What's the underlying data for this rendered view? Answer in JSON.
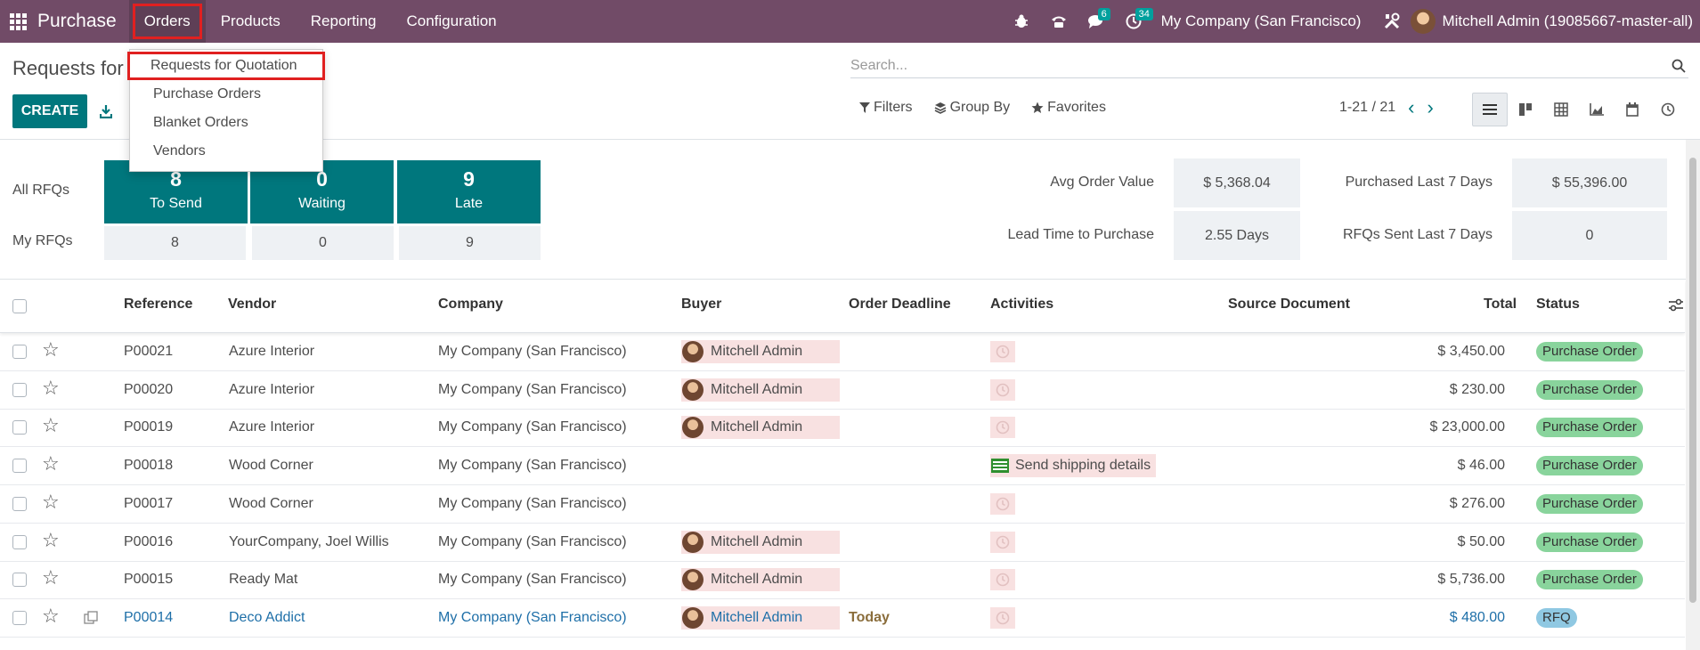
{
  "navbar": {
    "brand": "Purchase",
    "menu": [
      "Orders",
      "Products",
      "Reporting",
      "Configuration"
    ],
    "chat_count": "6",
    "activity_count": "34",
    "company": "My Company (San Francisco)",
    "user": "Mitchell Admin (19085667-master-all)"
  },
  "dropdown": {
    "items": [
      "Requests for Quotation",
      "Purchase Orders",
      "Blanket Orders",
      "Vendors"
    ]
  },
  "control_panel": {
    "title": "Requests for",
    "create_label": "CREATE",
    "search_placeholder": "Search...",
    "filters_label": "Filters",
    "groupby_label": "Group By",
    "favorites_label": "Favorites",
    "pager": "1-21 / 21"
  },
  "dashboard": {
    "all_label": "All RFQs",
    "my_label": "My RFQs",
    "tiles": [
      {
        "num": "8",
        "label": "To Send"
      },
      {
        "num": "0",
        "label": "Waiting"
      },
      {
        "num": "9",
        "label": "Late"
      }
    ],
    "my": [
      "8",
      "0",
      "9"
    ],
    "stats": {
      "avg_order_label": "Avg Order Value",
      "avg_order_value": "$ 5,368.04",
      "lead_time_label": "Lead Time to Purchase",
      "lead_time_value": "2.55 Days",
      "purchased_label": "Purchased Last 7 Days",
      "purchased_value": "$ 55,396.00",
      "rfqs_sent_label": "RFQs Sent Last 7 Days",
      "rfqs_sent_value": "0"
    }
  },
  "table": {
    "headers": {
      "reference": "Reference",
      "vendor": "Vendor",
      "company": "Company",
      "buyer": "Buyer",
      "deadline": "Order Deadline",
      "activities": "Activities",
      "source": "Source Document",
      "total": "Total",
      "status": "Status"
    },
    "rows": [
      {
        "ref": "P00021",
        "vendor": "Azure Interior",
        "company": "My Company (San Francisco)",
        "buyer": "Mitchell Admin",
        "deadline": "",
        "activity": "",
        "total": "$ 3,450.00",
        "status": "Purchase Order"
      },
      {
        "ref": "P00020",
        "vendor": "Azure Interior",
        "company": "My Company (San Francisco)",
        "buyer": "Mitchell Admin",
        "deadline": "",
        "activity": "",
        "total": "$ 230.00",
        "status": "Purchase Order"
      },
      {
        "ref": "P00019",
        "vendor": "Azure Interior",
        "company": "My Company (San Francisco)",
        "buyer": "Mitchell Admin",
        "deadline": "",
        "activity": "",
        "total": "$ 23,000.00",
        "status": "Purchase Order"
      },
      {
        "ref": "P00018",
        "vendor": "Wood Corner",
        "company": "My Company (San Francisco)",
        "buyer": "",
        "deadline": "",
        "activity": "Send shipping details",
        "total": "$ 46.00",
        "status": "Purchase Order"
      },
      {
        "ref": "P00017",
        "vendor": "Wood Corner",
        "company": "My Company (San Francisco)",
        "buyer": "",
        "deadline": "",
        "activity": "",
        "total": "$ 276.00",
        "status": "Purchase Order"
      },
      {
        "ref": "P00016",
        "vendor": "YourCompany, Joel Willis",
        "company": "My Company (San Francisco)",
        "buyer": "Mitchell Admin",
        "deadline": "",
        "activity": "",
        "total": "$ 50.00",
        "status": "Purchase Order"
      },
      {
        "ref": "P00015",
        "vendor": "Ready Mat",
        "company": "My Company (San Francisco)",
        "buyer": "Mitchell Admin",
        "deadline": "",
        "activity": "",
        "total": "$ 5,736.00",
        "status": "Purchase Order"
      },
      {
        "ref": "P00014",
        "vendor": "Deco Addict",
        "company": "My Company (San Francisco)",
        "buyer": "Mitchell Admin",
        "deadline": "Today",
        "activity": "",
        "total": "$ 480.00",
        "status": "RFQ"
      }
    ]
  }
}
